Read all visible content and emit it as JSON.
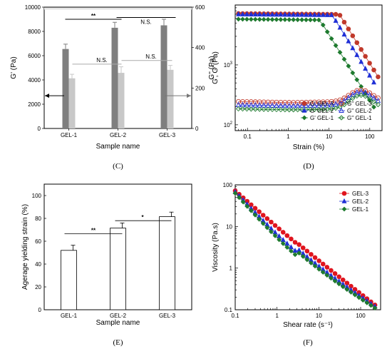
{
  "chart_data": [
    {
      "panel": "(C)",
      "type": "bar",
      "categories": [
        "GEL-1",
        "GEL-2",
        "GEL-3"
      ],
      "xlabel": "Sample name",
      "ylabel": "G' (Pa)",
      "ylabel_right": "G'' (Pa)",
      "ylim": [
        0,
        10000
      ],
      "ylim_right": [
        0,
        600
      ],
      "yticks": [
        0,
        2000,
        4000,
        6000,
        8000,
        10000
      ],
      "yticks_right": [
        0,
        200,
        400,
        600
      ],
      "series": [
        {
          "axis": "left",
          "color": "#7f7f7f",
          "values": [
            6550,
            8300,
            8500
          ],
          "errors": [
            400,
            450,
            500
          ]
        },
        {
          "axis": "right",
          "color": "#c8c8c8",
          "values": [
            248,
            275,
            290
          ],
          "errors": [
            20,
            30,
            22
          ]
        }
      ],
      "annotations": [
        "**",
        "N.S.",
        "N.S.",
        "N.S."
      ]
    },
    {
      "panel": "(D)",
      "type": "scatter",
      "xscale": "log",
      "yscale": "log",
      "xlim": [
        0.05,
        200
      ],
      "ylim": [
        80,
        10000
      ],
      "xlabel": "Strain (%)",
      "ylabel": "G', G''(Pa)",
      "xticks": [
        0.1,
        1,
        10,
        100
      ],
      "xtick_labels": [
        "0.1",
        "1",
        "10",
        "100"
      ],
      "yticks": [
        100,
        1000
      ],
      "legend_position": "bottom-right",
      "series": [
        {
          "name": "G'  GEL-3",
          "color": "#c0392b",
          "marker": "circle-filled",
          "plateau": 7200,
          "yield": 18,
          "end": 170
        },
        {
          "name": "G'  GEL-2",
          "color": "#1f2fd6",
          "marker": "triangle-filled",
          "plateau": 7000,
          "yield": 12,
          "end": 160
        },
        {
          "name": "G'  GEL-1",
          "color": "#1e7a2e",
          "marker": "diamond-filled",
          "plateau": 5800,
          "yield": 6,
          "end": 150
        },
        {
          "name": "G''  GEL-3",
          "color": "#c0392b",
          "marker": "circle-open",
          "base": 245,
          "peak": 380
        },
        {
          "name": "G''  GEL-2",
          "color": "#1f2fd6",
          "marker": "triangle-open",
          "base": 215,
          "peak": 355
        },
        {
          "name": "G''  GEL-1",
          "color": "#1e7a2e",
          "marker": "diamond-open",
          "base": 185,
          "peak": 310
        }
      ]
    },
    {
      "panel": "(E)",
      "type": "bar",
      "categories": [
        "GEL-1",
        "GEL-2",
        "GEL-3"
      ],
      "values": [
        52,
        71.5,
        81.5
      ],
      "errors": [
        4.5,
        4.5,
        4
      ],
      "xlabel": "Sample name",
      "ylabel": "Agerage yielding strain (%)",
      "ylim": [
        0,
        110
      ],
      "yticks": [
        0,
        20,
        40,
        60,
        80,
        100
      ],
      "annotations": [
        "**",
        "*"
      ]
    },
    {
      "panel": "(F)",
      "type": "scatter",
      "xscale": "log",
      "yscale": "log",
      "xlim": [
        0.1,
        300
      ],
      "ylim": [
        0.1,
        100
      ],
      "xlabel": "Shear rate (s⁻¹)",
      "ylabel": "Viscosity (Pa.s)",
      "xticks": [
        0.1,
        1,
        10,
        100
      ],
      "xtick_labels": [
        "0.1",
        "1",
        "10",
        "100"
      ],
      "yticks": [
        0.1,
        1,
        10,
        100
      ],
      "ytick_labels": [
        "0.1",
        "1",
        "10",
        "100"
      ],
      "legend_position": "top-right",
      "series": [
        {
          "name": "GEL-3",
          "color": "#e0141e",
          "marker": "circle-filled",
          "y0": 72,
          "y_end": 0.13
        },
        {
          "name": "GEL-2",
          "color": "#1f2fd6",
          "marker": "triangle-filled",
          "y0": 68,
          "y_end": 0.12
        },
        {
          "name": "GEL-1",
          "color": "#1e7a2e",
          "marker": "diamond-filled",
          "y0": 63,
          "y_end": 0.11
        }
      ]
    }
  ]
}
